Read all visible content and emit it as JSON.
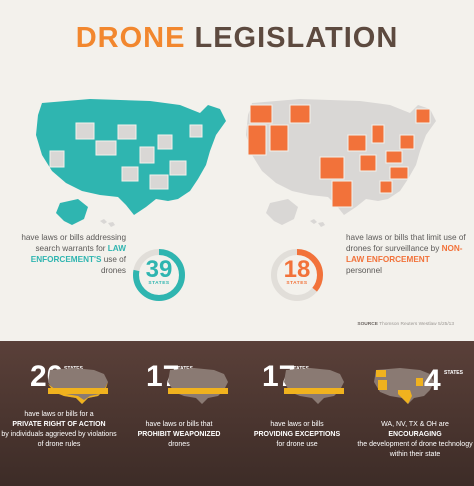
{
  "title": {
    "part1": "DRONE",
    "part2": "LEGISLATION"
  },
  "colors": {
    "teal": "#2fb5b0",
    "orange": "#f2723a",
    "title_orange": "#f2872e",
    "gold": "#f0b21e",
    "dark_brown": "#4a352f",
    "map_grey": "#d9d7d5"
  },
  "left_stat": {
    "number": "39",
    "unit": "STATES",
    "fraction": 0.78,
    "text_before": "have laws or bills addressing search warrants for",
    "highlight": "LAW ENFORCEMENT'S",
    "text_after": "use of drones"
  },
  "right_stat": {
    "number": "18",
    "unit": "STATES",
    "fraction": 0.36,
    "text_before": "have laws or bills that limit use of drones for surveillance by",
    "highlight": "NON-LAW ENFORCEMENT",
    "text_after": "personnel"
  },
  "source": {
    "label": "SOURCE",
    "value": "Thomson Reuters Westlaw 5/25/13"
  },
  "panels": [
    {
      "number": "20",
      "unit": "STATES",
      "line1": "have laws or bills for a",
      "bold": "PRIVATE RIGHT OF ACTION",
      "line2": "by individuals aggrieved by violations of drone rules"
    },
    {
      "number": "17",
      "unit": "STATES",
      "line1": "have laws or bills that",
      "bold": "PROHIBIT WEAPONIZED",
      "line2": "drones"
    },
    {
      "number": "17",
      "unit": "STATES",
      "line1": "have laws or bills",
      "bold": "PROVIDING EXCEPTIONS",
      "line2": "for drone use"
    },
    {
      "number": "4",
      "unit": "STATES",
      "line1": "WA, NV, TX & OH are",
      "bold": "ENCOURAGING",
      "line2": "the development of drone technology within their state"
    }
  ]
}
